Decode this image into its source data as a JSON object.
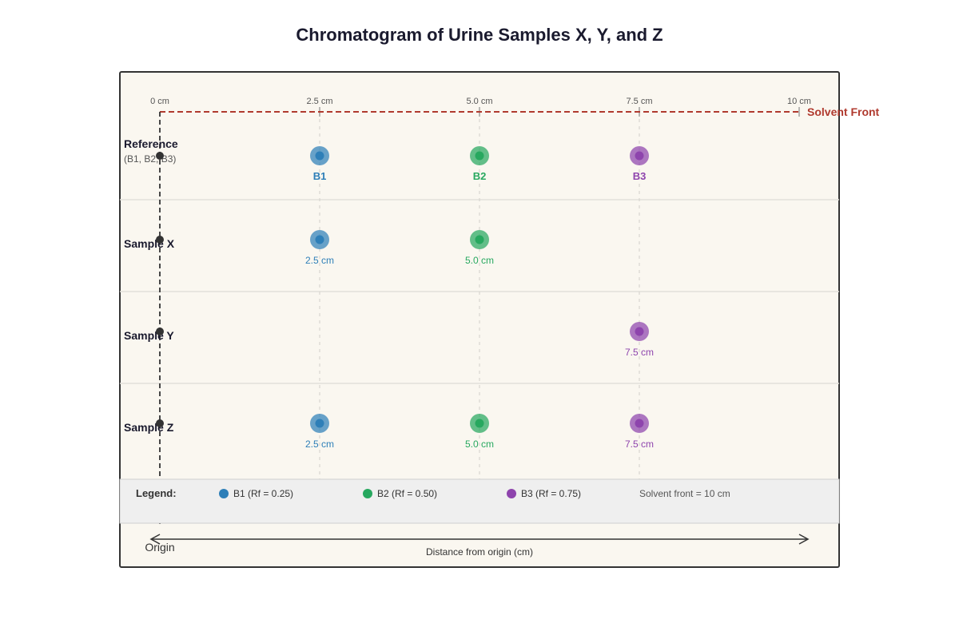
{
  "title": "Chromatogram of Urine Samples X, Y, and Z",
  "axis": {
    "ticks": [
      {
        "value": 0,
        "label": "0 cm"
      },
      {
        "value": 2.5,
        "label": "2.5 cm"
      },
      {
        "value": 5.0,
        "label": "5.0 cm"
      },
      {
        "value": 7.5,
        "label": "7.5 cm"
      },
      {
        "value": 10,
        "label": "10 cm"
      }
    ],
    "range_cm": [
      0,
      10
    ],
    "x_label": "Distance from origin (cm)",
    "origin_label": "Origin"
  },
  "solvent_front": {
    "label": "Solvent Front",
    "distance_cm": 10,
    "color": "#b03a2e"
  },
  "substances": {
    "B1": {
      "color": "#2e7fb8",
      "rf": 0.25
    },
    "B2": {
      "color": "#27a85f",
      "rf": 0.5
    },
    "B3": {
      "color": "#8e44ad",
      "rf": 0.75
    }
  },
  "lanes": [
    {
      "label": "Reference",
      "sublabel": "(B1, B2, B3)",
      "spots": [
        {
          "substance": "B1",
          "distance_cm": 2.5,
          "label": "B1"
        },
        {
          "substance": "B2",
          "distance_cm": 5.0,
          "label": "B2"
        },
        {
          "substance": "B3",
          "distance_cm": 7.5,
          "label": "B3"
        }
      ]
    },
    {
      "label": "Sample X",
      "sublabel": "",
      "spots": [
        {
          "substance": "B1",
          "distance_cm": 2.5,
          "label": "2.5 cm"
        },
        {
          "substance": "B2",
          "distance_cm": 5.0,
          "label": "5.0 cm"
        }
      ]
    },
    {
      "label": "Sample Y",
      "sublabel": "",
      "spots": [
        {
          "substance": "B3",
          "distance_cm": 7.5,
          "label": "7.5 cm"
        }
      ]
    },
    {
      "label": "Sample Z",
      "sublabel": "",
      "spots": [
        {
          "substance": "B1",
          "distance_cm": 2.5,
          "label": "2.5 cm"
        },
        {
          "substance": "B2",
          "distance_cm": 5.0,
          "label": "5.0 cm"
        },
        {
          "substance": "B3",
          "distance_cm": 7.5,
          "label": "7.5 cm"
        }
      ]
    }
  ],
  "legend": {
    "title": "Legend:",
    "items": [
      {
        "substance": "B1",
        "text": "B1 (Rf = 0.25)"
      },
      {
        "substance": "B2",
        "text": "B2 (Rf = 0.50)"
      },
      {
        "substance": "B3",
        "text": "B3 (Rf = 0.75)"
      }
    ],
    "note": "Solvent front = 10 cm"
  },
  "colors": {
    "panel_background": "#faf7f0",
    "legend_background": "#efefef",
    "frame": "#333333",
    "origin_line": "#333333"
  }
}
